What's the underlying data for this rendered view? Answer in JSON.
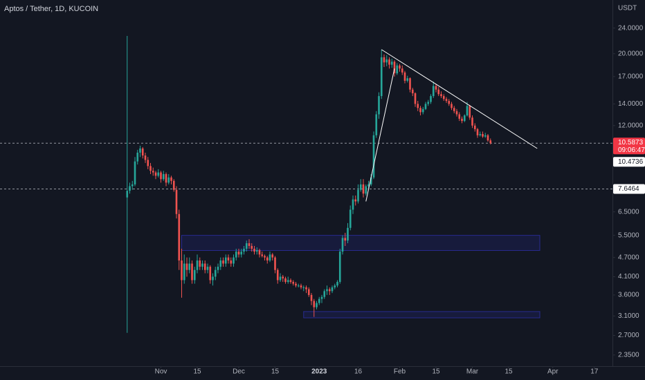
{
  "chart_data": {
    "type": "candlestick",
    "title": "Aptos / Tether, 1D, KUCOIN",
    "y_axis_label": "USDT",
    "log_scale": true,
    "grid": false,
    "up_color": "#26a69a",
    "down_color": "#ef5350",
    "xlim": [
      "2022-08-31",
      "2023-04-24"
    ],
    "ylim": [
      2.17,
      29.3
    ],
    "xticks": [
      {
        "value": "2022-11-01",
        "label": "Nov"
      },
      {
        "value": "2022-11-15",
        "label": "15"
      },
      {
        "value": "2022-12-01",
        "label": "Dec"
      },
      {
        "value": "2022-12-15",
        "label": "15"
      },
      {
        "value": "2023-01-01",
        "label": "2023"
      },
      {
        "value": "2023-01-16",
        "label": "16"
      },
      {
        "value": "2023-02-01",
        "label": "Feb"
      },
      {
        "value": "2023-02-15",
        "label": "15"
      },
      {
        "value": "2023-03-01",
        "label": "Mar"
      },
      {
        "value": "2023-03-15",
        "label": "15"
      },
      {
        "value": "2023-04-01",
        "label": "Apr"
      },
      {
        "value": "2023-04-17",
        "label": "17"
      }
    ],
    "yticks": [
      {
        "value": 24,
        "label": "24.0000"
      },
      {
        "value": 20,
        "label": "20.0000"
      },
      {
        "value": 17,
        "label": "17.0000"
      },
      {
        "value": 14,
        "label": "14.0000"
      },
      {
        "value": 12,
        "label": "12.0000"
      },
      {
        "value": 6.5,
        "label": "6.5000"
      },
      {
        "value": 5.5,
        "label": "5.5000"
      },
      {
        "value": 4.7,
        "label": "4.7000"
      },
      {
        "value": 4.1,
        "label": "4.1000"
      },
      {
        "value": 3.6,
        "label": "3.6000"
      },
      {
        "value": 3.1,
        "label": "3.1000"
      },
      {
        "value": 2.7,
        "label": "2.7000"
      },
      {
        "value": 2.35,
        "label": "2.3500"
      }
    ],
    "x": [
      "2022-10-19",
      "2022-10-20",
      "2022-10-21",
      "2022-10-22",
      "2022-10-23",
      "2022-10-24",
      "2022-10-25",
      "2022-10-26",
      "2022-10-27",
      "2022-10-28",
      "2022-10-29",
      "2022-10-30",
      "2022-10-31",
      "2022-11-01",
      "2022-11-02",
      "2022-11-03",
      "2022-11-04",
      "2022-11-05",
      "2022-11-06",
      "2022-11-07",
      "2022-11-08",
      "2022-11-09",
      "2022-11-10",
      "2022-11-11",
      "2022-11-12",
      "2022-11-13",
      "2022-11-14",
      "2022-11-15",
      "2022-11-16",
      "2022-11-17",
      "2022-11-18",
      "2022-11-19",
      "2022-11-20",
      "2022-11-21",
      "2022-11-22",
      "2022-11-23",
      "2022-11-24",
      "2022-11-25",
      "2022-11-26",
      "2022-11-27",
      "2022-11-28",
      "2022-11-29",
      "2022-11-30",
      "2022-12-01",
      "2022-12-02",
      "2022-12-03",
      "2022-12-04",
      "2022-12-05",
      "2022-12-06",
      "2022-12-07",
      "2022-12-08",
      "2022-12-09",
      "2022-12-10",
      "2022-12-11",
      "2022-12-12",
      "2022-12-13",
      "2022-12-14",
      "2022-12-15",
      "2022-12-16",
      "2022-12-17",
      "2022-12-18",
      "2022-12-19",
      "2022-12-20",
      "2022-12-21",
      "2022-12-22",
      "2022-12-23",
      "2022-12-24",
      "2022-12-25",
      "2022-12-26",
      "2022-12-27",
      "2022-12-28",
      "2022-12-29",
      "2022-12-30",
      "2022-12-31",
      "2023-01-01",
      "2023-01-02",
      "2023-01-03",
      "2023-01-04",
      "2023-01-05",
      "2023-01-06",
      "2023-01-07",
      "2023-01-08",
      "2023-01-09",
      "2023-01-10",
      "2023-01-11",
      "2023-01-12",
      "2023-01-13",
      "2023-01-14",
      "2023-01-15",
      "2023-01-16",
      "2023-01-17",
      "2023-01-18",
      "2023-01-19",
      "2023-01-20",
      "2023-01-21",
      "2023-01-22",
      "2023-01-23",
      "2023-01-24",
      "2023-01-25",
      "2023-01-26",
      "2023-01-27",
      "2023-01-28",
      "2023-01-29",
      "2023-01-30",
      "2023-01-31",
      "2023-02-01",
      "2023-02-02",
      "2023-02-03",
      "2023-02-04",
      "2023-02-05",
      "2023-02-06",
      "2023-02-07",
      "2023-02-08",
      "2023-02-09",
      "2023-02-10",
      "2023-02-11",
      "2023-02-12",
      "2023-02-13",
      "2023-02-14",
      "2023-02-15",
      "2023-02-16",
      "2023-02-17",
      "2023-02-18",
      "2023-02-19",
      "2023-02-20",
      "2023-02-21",
      "2023-02-22",
      "2023-02-23",
      "2023-02-24",
      "2023-02-25",
      "2023-02-26",
      "2023-02-27",
      "2023-02-28",
      "2023-03-01",
      "2023-03-02",
      "2023-03-03",
      "2023-03-04",
      "2023-03-05",
      "2023-03-06",
      "2023-03-07",
      "2023-03-08"
    ],
    "ohlc": [
      [
        7.2,
        22.7,
        2.75,
        7.55
      ],
      [
        7.55,
        8.0,
        7.4,
        7.8
      ],
      [
        7.8,
        8.1,
        7.6,
        7.9
      ],
      [
        7.9,
        9.6,
        7.8,
        9.3
      ],
      [
        9.3,
        10.1,
        9.1,
        9.9
      ],
      [
        9.9,
        10.4,
        9.6,
        10.2
      ],
      [
        10.2,
        10.3,
        9.5,
        9.7
      ],
      [
        9.7,
        9.9,
        9.2,
        9.4
      ],
      [
        9.4,
        9.6,
        8.8,
        9.0
      ],
      [
        9.0,
        9.2,
        8.5,
        8.7
      ],
      [
        8.7,
        8.9,
        8.4,
        8.6
      ],
      [
        8.6,
        8.7,
        8.2,
        8.4
      ],
      [
        8.4,
        8.8,
        8.3,
        8.6
      ],
      [
        8.6,
        8.7,
        8.0,
        8.2
      ],
      [
        8.2,
        8.7,
        8.1,
        8.5
      ],
      [
        8.5,
        8.6,
        7.8,
        8.0
      ],
      [
        8.0,
        8.5,
        7.9,
        8.3
      ],
      [
        8.3,
        8.4,
        7.9,
        8.1
      ],
      [
        8.1,
        8.2,
        7.5,
        7.6
      ],
      [
        7.6,
        7.8,
        6.2,
        6.4
      ],
      [
        6.4,
        6.6,
        4.3,
        4.6
      ],
      [
        4.6,
        5.0,
        3.53,
        4.0
      ],
      [
        4.0,
        4.8,
        3.9,
        4.5
      ],
      [
        4.5,
        4.7,
        4.1,
        4.3
      ],
      [
        4.3,
        4.7,
        4.2,
        4.5
      ],
      [
        4.5,
        4.6,
        3.9,
        4.0
      ],
      [
        4.0,
        4.4,
        3.9,
        4.3
      ],
      [
        4.3,
        4.8,
        4.2,
        4.6
      ],
      [
        4.6,
        4.7,
        4.3,
        4.4
      ],
      [
        4.4,
        4.6,
        4.3,
        4.5
      ],
      [
        4.5,
        4.6,
        4.2,
        4.3
      ],
      [
        4.3,
        4.5,
        4.2,
        4.4
      ],
      [
        4.4,
        4.45,
        3.9,
        4.0
      ],
      [
        4.0,
        4.2,
        3.85,
        4.1
      ],
      [
        4.1,
        4.4,
        4.0,
        4.3
      ],
      [
        4.3,
        4.5,
        4.2,
        4.4
      ],
      [
        4.4,
        4.7,
        4.3,
        4.6
      ],
      [
        4.6,
        4.7,
        4.4,
        4.5
      ],
      [
        4.5,
        4.8,
        4.4,
        4.7
      ],
      [
        4.7,
        4.8,
        4.5,
        4.6
      ],
      [
        4.6,
        4.7,
        4.4,
        4.5
      ],
      [
        4.5,
        4.8,
        4.4,
        4.7
      ],
      [
        4.7,
        5.0,
        4.6,
        4.9
      ],
      [
        4.9,
        5.0,
        4.7,
        4.8
      ],
      [
        4.8,
        5.0,
        4.7,
        4.9
      ],
      [
        4.9,
        5.1,
        4.8,
        5.0
      ],
      [
        5.0,
        5.3,
        4.9,
        5.2
      ],
      [
        5.2,
        5.35,
        5.0,
        5.1
      ],
      [
        5.1,
        5.2,
        4.9,
        5.0
      ],
      [
        5.0,
        5.1,
        4.8,
        4.9
      ],
      [
        4.9,
        5.05,
        4.8,
        4.95
      ],
      [
        4.95,
        5.0,
        4.7,
        4.8
      ],
      [
        4.8,
        4.9,
        4.7,
        4.75
      ],
      [
        4.75,
        4.8,
        4.6,
        4.7
      ],
      [
        4.7,
        4.75,
        4.5,
        4.6
      ],
      [
        4.6,
        4.9,
        4.55,
        4.8
      ],
      [
        4.8,
        4.85,
        4.6,
        4.7
      ],
      [
        4.7,
        4.75,
        4.2,
        4.3
      ],
      [
        4.3,
        4.35,
        3.9,
        4.0
      ],
      [
        4.0,
        4.2,
        3.95,
        4.1
      ],
      [
        4.1,
        4.15,
        3.95,
        4.05
      ],
      [
        4.05,
        4.1,
        3.9,
        3.95
      ],
      [
        3.95,
        4.1,
        3.9,
        4.0
      ],
      [
        4.0,
        4.05,
        3.9,
        3.95
      ],
      [
        3.95,
        4.0,
        3.85,
        3.9
      ],
      [
        3.9,
        3.95,
        3.8,
        3.85
      ],
      [
        3.85,
        3.9,
        3.8,
        3.85
      ],
      [
        3.85,
        3.9,
        3.75,
        3.8
      ],
      [
        3.8,
        3.85,
        3.7,
        3.8
      ],
      [
        3.8,
        3.85,
        3.65,
        3.75
      ],
      [
        3.75,
        3.8,
        3.55,
        3.6
      ],
      [
        3.6,
        3.65,
        3.35,
        3.45
      ],
      [
        3.45,
        3.5,
        3.08,
        3.3
      ],
      [
        3.3,
        3.45,
        3.25,
        3.4
      ],
      [
        3.4,
        3.55,
        3.35,
        3.5
      ],
      [
        3.5,
        3.6,
        3.4,
        3.55
      ],
      [
        3.55,
        3.75,
        3.5,
        3.7
      ],
      [
        3.7,
        3.85,
        3.6,
        3.75
      ],
      [
        3.75,
        3.8,
        3.6,
        3.7
      ],
      [
        3.7,
        3.85,
        3.65,
        3.8
      ],
      [
        3.8,
        3.9,
        3.75,
        3.85
      ],
      [
        3.85,
        4.0,
        3.8,
        3.95
      ],
      [
        3.95,
        5.0,
        3.9,
        4.9
      ],
      [
        4.9,
        5.5,
        4.8,
        5.4
      ],
      [
        5.4,
        5.6,
        5.1,
        5.3
      ],
      [
        5.3,
        6.0,
        5.2,
        5.8
      ],
      [
        5.8,
        6.8,
        5.7,
        6.6
      ],
      [
        6.6,
        7.3,
        6.4,
        7.1
      ],
      [
        7.1,
        7.3,
        6.8,
        7.0
      ],
      [
        7.0,
        7.9,
        6.9,
        7.6
      ],
      [
        7.6,
        8.2,
        7.5,
        7.9
      ],
      [
        7.9,
        8.2,
        7.2,
        7.4
      ],
      [
        7.4,
        7.9,
        7.3,
        7.8
      ],
      [
        7.8,
        8.1,
        7.6,
        7.9
      ],
      [
        7.9,
        8.5,
        7.8,
        8.3
      ],
      [
        8.3,
        11.5,
        8.2,
        11.2
      ],
      [
        11.2,
        13.3,
        11.0,
        13.0
      ],
      [
        13.0,
        15.2,
        12.6,
        14.8
      ],
      [
        14.8,
        20.6,
        14.5,
        19.5
      ],
      [
        19.5,
        19.9,
        18.2,
        18.8
      ],
      [
        18.8,
        19.8,
        18.3,
        19.2
      ],
      [
        19.2,
        19.5,
        18.0,
        18.5
      ],
      [
        18.5,
        19.3,
        18.1,
        18.9
      ],
      [
        18.9,
        19.1,
        17.0,
        17.4
      ],
      [
        17.4,
        18.7,
        17.2,
        18.4
      ],
      [
        18.4,
        18.6,
        17.6,
        18.0
      ],
      [
        18.0,
        18.4,
        17.2,
        17.5
      ],
      [
        17.5,
        17.7,
        16.2,
        16.5
      ],
      [
        16.5,
        17.1,
        16.3,
        16.8
      ],
      [
        16.8,
        16.9,
        15.2,
        15.5
      ],
      [
        15.5,
        15.7,
        14.8,
        15.1
      ],
      [
        15.1,
        15.2,
        13.7,
        14.0
      ],
      [
        14.0,
        14.3,
        13.3,
        13.6
      ],
      [
        13.6,
        13.8,
        12.9,
        13.2
      ],
      [
        13.2,
        13.7,
        13.0,
        13.5
      ],
      [
        13.5,
        14.2,
        13.4,
        14.0
      ],
      [
        14.0,
        14.4,
        13.8,
        14.2
      ],
      [
        14.2,
        15.0,
        14.0,
        14.8
      ],
      [
        14.8,
        16.4,
        14.6,
        15.9
      ],
      [
        15.9,
        16.1,
        15.2,
        15.5
      ],
      [
        15.5,
        15.8,
        14.8,
        15.0
      ],
      [
        15.0,
        15.3,
        14.6,
        14.8
      ],
      [
        14.8,
        15.0,
        14.3,
        14.5
      ],
      [
        14.5,
        14.7,
        14.1,
        14.3
      ],
      [
        14.3,
        14.5,
        13.8,
        14.0
      ],
      [
        14.0,
        14.2,
        13.4,
        13.6
      ],
      [
        13.6,
        13.8,
        13.1,
        13.3
      ],
      [
        13.3,
        13.5,
        12.8,
        13.0
      ],
      [
        13.0,
        13.2,
        12.4,
        12.6
      ],
      [
        12.6,
        12.8,
        12.2,
        12.4
      ],
      [
        12.4,
        13.0,
        12.3,
        12.9
      ],
      [
        12.9,
        14.2,
        12.8,
        13.8
      ],
      [
        13.8,
        13.9,
        12.5,
        12.7
      ],
      [
        12.7,
        12.9,
        11.8,
        12.0
      ],
      [
        12.0,
        12.2,
        11.5,
        11.7
      ],
      [
        11.7,
        11.8,
        11.0,
        11.2
      ],
      [
        11.2,
        11.5,
        11.1,
        11.3
      ],
      [
        11.3,
        11.5,
        11.0,
        11.1
      ],
      [
        11.1,
        11.4,
        11.0,
        11.2
      ],
      [
        11.2,
        11.3,
        10.7,
        10.8
      ],
      [
        10.8,
        10.95,
        10.5,
        10.5873
      ]
    ],
    "price_lines": [
      {
        "value": 10.5873,
        "countdown": "09:06:47",
        "color": "#f23645"
      },
      {
        "value": 7.6464,
        "color": "#ffffff"
      }
    ],
    "marker": 10.4736,
    "trendlines": [
      {
        "x": [
          "2023-01-25",
          "2023-03-26"
        ],
        "y": [
          20.6,
          10.2
        ],
        "color": "#ffffff"
      },
      {
        "x": [
          "2023-01-19",
          "2023-01-30"
        ],
        "y": [
          7.0,
          18.0
        ],
        "color": "#ffffff"
      }
    ],
    "zones": [
      {
        "x": [
          "2022-11-09",
          "2023-03-27"
        ],
        "y": [
          4.94,
          5.5
        ],
        "color": "#2a2e9a"
      },
      {
        "x": [
          "2022-12-26",
          "2023-03-27"
        ],
        "y": [
          3.06,
          3.2
        ],
        "color": "#2a2e9a"
      }
    ]
  }
}
